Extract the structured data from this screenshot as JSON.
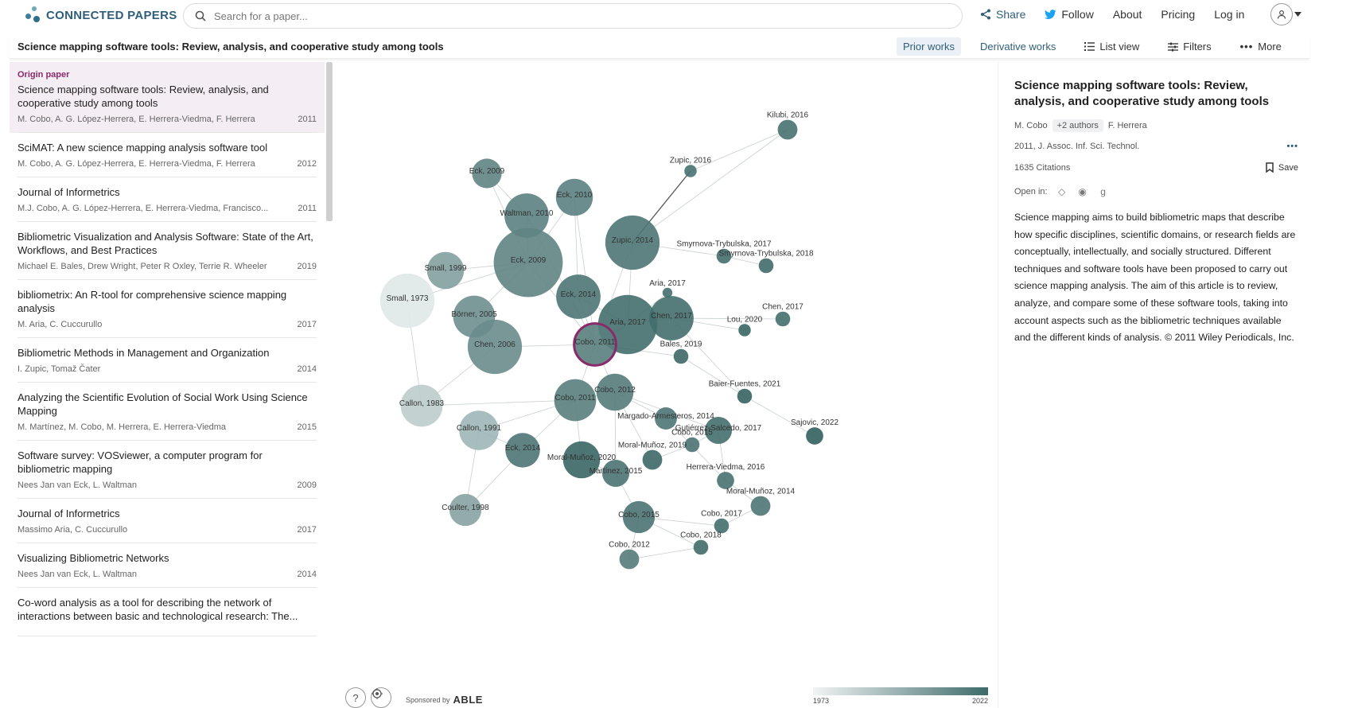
{
  "header": {
    "logo_text": "CONNECTED PAPERS",
    "search_placeholder": "Search for a paper...",
    "nav": {
      "share": "Share",
      "follow": "Follow",
      "about": "About",
      "pricing": "Pricing",
      "login": "Log in"
    }
  },
  "subheader": {
    "title": "Science mapping software tools: Review, analysis, and cooperative study among tools",
    "prior_works": "Prior works",
    "derivative_works": "Derivative works",
    "list_view": "List view",
    "filters": "Filters",
    "more": "More"
  },
  "list": {
    "origin_tag": "Origin paper",
    "items": [
      {
        "title": "Science mapping software tools: Review, analysis, and cooperative study among tools",
        "authors": "M. Cobo, A. G. López-Herrera, E. Herrera-Viedma, F. Herrera",
        "year": "2011"
      },
      {
        "title": "SciMAT: A new science mapping analysis software tool",
        "authors": "M. Cobo, A. G. López-Herrera, E. Herrera-Viedma, F. Herrera",
        "year": "2012"
      },
      {
        "title": "Journal of Informetrics",
        "authors": "M.J. Cobo, A. G. López-Herrera, E. Herrera-Viedma, Francisco...",
        "year": "2011"
      },
      {
        "title": "Bibliometric Visualization and Analysis Software: State of the Art, Workflows, and Best Practices",
        "authors": "Michael E. Bales, Drew Wright, Peter R Oxley, Terrie R. Wheeler",
        "year": "2019"
      },
      {
        "title": "bibliometrix: An R-tool for comprehensive science mapping analysis",
        "authors": "M. Aria, C. Cuccurullo",
        "year": "2017"
      },
      {
        "title": "Bibliometric Methods in Management and Organization",
        "authors": "I. Zupic, Tomaž Čater",
        "year": "2014"
      },
      {
        "title": "Analyzing the Scientific Evolution of Social Work Using Science Mapping",
        "authors": "M. Martínez, M. Cobo, M. Herrera, E. Herrera-Viedma",
        "year": "2015"
      },
      {
        "title": "Software survey: VOSviewer, a computer program for bibliometric mapping",
        "authors": "Nees Jan van Eck, L. Waltman",
        "year": "2009"
      },
      {
        "title": "Journal of Informetrics",
        "authors": "Massimo Aria, C. Cuccurullo",
        "year": "2017"
      },
      {
        "title": "Visualizing Bibliometric Networks",
        "authors": "Nees Jan van Eck, L. Waltman",
        "year": "2014"
      },
      {
        "title": "Co-word analysis as a tool for describing the network of interactions between basic and technological research: The...",
        "authors": "",
        "year": ""
      }
    ]
  },
  "graph": {
    "nodes": [
      {
        "label": "Kilubi, 2016",
        "size": 8,
        "year": 2016
      },
      {
        "label": "Eck, 2009",
        "size": 12,
        "year": 2009
      },
      {
        "label": "Zupic, 2016",
        "size": 5,
        "year": 2016
      },
      {
        "label": "Eck, 2010",
        "size": 15,
        "year": 2010
      },
      {
        "label": "Waltman, 2010",
        "size": 18,
        "year": 2010
      },
      {
        "label": "Zupic, 2014",
        "size": 22,
        "year": 2014
      },
      {
        "label": "Small, 1999",
        "size": 15,
        "year": 1999
      },
      {
        "label": "Eck, 2009",
        "size": 28,
        "year": 2009
      },
      {
        "label": "Smyrnova-Trybulska, 2017",
        "size": 6,
        "year": 2017
      },
      {
        "label": "Smyrnova-Trybulska, 2018",
        "size": 6,
        "year": 2018
      },
      {
        "label": "Small, 1973",
        "size": 22,
        "year": 1973
      },
      {
        "label": "Eck, 2014",
        "size": 18,
        "year": 2014
      },
      {
        "label": "Aria, 2017",
        "size": 4,
        "year": 2017
      },
      {
        "label": "Börner, 2005",
        "size": 17,
        "year": 2005
      },
      {
        "label": "Aria, 2017",
        "size": 24,
        "year": 2017
      },
      {
        "label": "Chen, 2017",
        "size": 18,
        "year": 2017
      },
      {
        "label": "Chen, 2017",
        "size": 6,
        "year": 2017
      },
      {
        "label": "Lou, 2020",
        "size": 5,
        "year": 2020
      },
      {
        "label": "Chen, 2006",
        "size": 22,
        "year": 2006
      },
      {
        "label": "Cobo, 2011",
        "size": 17,
        "year": 2011
      },
      {
        "label": "Bales, 2019",
        "size": 6,
        "year": 2019
      },
      {
        "label": "Baier-Fuentes, 2021",
        "size": 6,
        "year": 2021
      },
      {
        "label": "Cobo, 2012",
        "size": 15,
        "year": 2012
      },
      {
        "label": "Callon, 1983",
        "size": 17,
        "year": 1983
      },
      {
        "label": "Cobo, 2011",
        "size": 17,
        "year": 2011
      },
      {
        "label": "Margado-Armesteros, 2014",
        "size": 9,
        "year": 2014
      },
      {
        "label": "Gutiérrez-Salcedo, 2017",
        "size": 11,
        "year": 2017
      },
      {
        "label": "Callon, 1991",
        "size": 16,
        "year": 1991
      },
      {
        "label": "Sajovic, 2022",
        "size": 7,
        "year": 2022
      },
      {
        "label": "Cobo, 2015",
        "size": 6,
        "year": 2015
      },
      {
        "label": "Eck, 2014",
        "size": 14,
        "year": 2014
      },
      {
        "label": "Moral-Muñoz, 2020",
        "size": 15,
        "year": 2020
      },
      {
        "label": "Moral-Muñoz, 2019",
        "size": 8,
        "year": 2019
      },
      {
        "label": "Martínez, 2015",
        "size": 11,
        "year": 2015
      },
      {
        "label": "Herrera-Viedma, 2016",
        "size": 7,
        "year": 2016
      },
      {
        "label": "Coulter, 1998",
        "size": 13,
        "year": 1998
      },
      {
        "label": "Moral-Muñoz, 2014",
        "size": 8,
        "year": 2014
      },
      {
        "label": "Cobo, 2015",
        "size": 13,
        "year": 2015
      },
      {
        "label": "Cobo, 2017",
        "size": 6,
        "year": 2017
      },
      {
        "label": "Cobo, 2018",
        "size": 6,
        "year": 2018
      },
      {
        "label": "Cobo, 2012",
        "size": 8,
        "year": 2012
      }
    ],
    "legend": {
      "min": "1973",
      "max": "2022"
    },
    "help": "?",
    "sponsor_prefix": "Sponsored by",
    "sponsor_name": "ABLE"
  },
  "detail": {
    "title": "Science mapping software tools: Review, analysis, and cooperative study among tools",
    "first_author": "M. Cobo",
    "more_authors": "+2 authors",
    "last_author": "F. Herrera",
    "venue": "2011, J. Assoc. Inf. Sci. Technol.",
    "citations": "1635 Citations",
    "save": "Save",
    "open_in": "Open in:",
    "abstract": "Science mapping aims to build bibliometric maps that describe how specific disciplines, scientific domains, or research fields are conceptually, intellectually, and socially structured. Different techniques and software tools have been proposed to carry out science mapping analysis. The aim of this article is to review, analyze, and compare some of these software tools, taking into account aspects such as the bibliometric techniques available and the different kinds of analysis. © 2011 Wiley Periodicals, Inc."
  },
  "colors": {
    "accent": "#2f5f7a",
    "origin": "#8a2a6a",
    "node_light": "#e3ebeb",
    "node_dark": "#3d6b6a"
  }
}
